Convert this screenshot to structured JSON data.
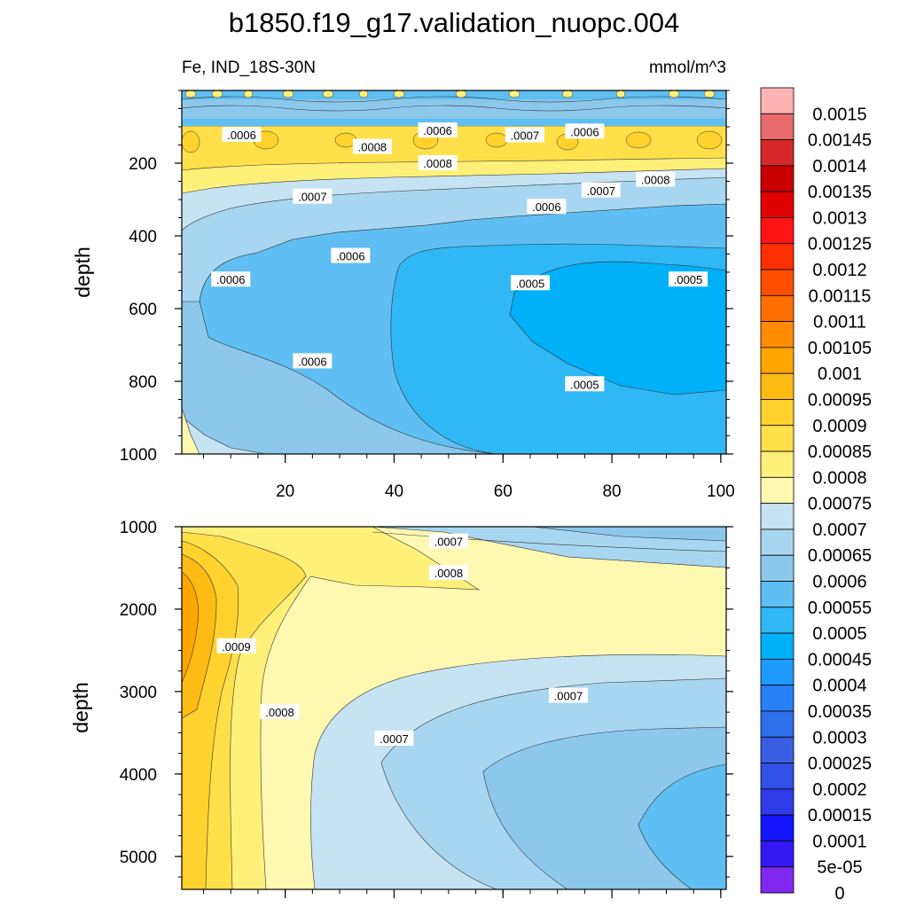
{
  "title": "b1850.f19_g17.validation_nuopc.004",
  "variable_label": "Fe, IND_18S-30N",
  "units_label": "mmol/m^3",
  "chart_data": [
    {
      "type": "contour",
      "panel": "upper",
      "ylabel": "depth",
      "xlabel": "",
      "xlim": [
        1,
        101
      ],
      "ylim": [
        1000,
        0
      ],
      "x_ticks": [
        20,
        40,
        60,
        80,
        100
      ],
      "y_ticks": [
        200,
        400,
        600,
        800,
        1000
      ],
      "contour_labels": [
        {
          "text": ".0006",
          "x": 12,
          "y": 122
        },
        {
          "text": ".0006",
          "x": 48,
          "y": 110
        },
        {
          "text": ".0007",
          "x": 64,
          "y": 123
        },
        {
          "text": ".0006",
          "x": 75,
          "y": 113
        },
        {
          "text": ".0008",
          "x": 36,
          "y": 155
        },
        {
          "text": ".0008",
          "x": 48,
          "y": 200
        },
        {
          "text": ".0007",
          "x": 25,
          "y": 292
        },
        {
          "text": ".0007",
          "x": 78,
          "y": 275
        },
        {
          "text": ".0008",
          "x": 88,
          "y": 245
        },
        {
          "text": ".0006",
          "x": 68,
          "y": 320
        },
        {
          "text": ".0006",
          "x": 32,
          "y": 455
        },
        {
          "text": ".0006",
          "x": 10,
          "y": 520
        },
        {
          "text": ".0005",
          "x": 65,
          "y": 530
        },
        {
          "text": ".0005",
          "x": 94,
          "y": 520
        },
        {
          "text": ".0006",
          "x": 25,
          "y": 745
        },
        {
          "text": ".0005",
          "x": 75,
          "y": 808
        }
      ]
    },
    {
      "type": "contour",
      "panel": "lower",
      "ylabel": "depth",
      "xlabel": "",
      "xlim": [
        1,
        101
      ],
      "ylim": [
        5400,
        1000
      ],
      "x_ticks": [
        20,
        40,
        60,
        80,
        100
      ],
      "y_ticks": [
        1000,
        2000,
        3000,
        4000,
        5000
      ],
      "contour_labels": [
        {
          "text": ".0007",
          "x": 50,
          "y": 1180
        },
        {
          "text": ".0008",
          "x": 50,
          "y": 1560
        },
        {
          "text": ".0009",
          "x": 11,
          "y": 2450
        },
        {
          "text": ".0008",
          "x": 19,
          "y": 3250
        },
        {
          "text": ".0007",
          "x": 40,
          "y": 3570
        },
        {
          "text": ".0007",
          "x": 72,
          "y": 3050
        }
      ]
    }
  ],
  "colorbar": {
    "labels": [
      "0.0015",
      "0.00145",
      "0.0014",
      "0.00135",
      "0.0013",
      "0.00125",
      "0.0012",
      "0.00115",
      "0.0011",
      "0.00105",
      "0.001",
      "0.00095",
      "0.0009",
      "0.00085",
      "0.0008",
      "0.00075",
      "0.0007",
      "0.00065",
      "0.0006",
      "0.00055",
      "0.0005",
      "0.00045",
      "0.0004",
      "0.00035",
      "0.0003",
      "0.00025",
      "0.0002",
      "0.00015",
      "0.0001",
      "5e-05",
      "0"
    ],
    "colors_top_to_bottom": [
      "#ffb3b3",
      "#e86a6a",
      "#d62828",
      "#c80000",
      "#e00000",
      "#ff1414",
      "#ff2f00",
      "#ff5000",
      "#ff6e00",
      "#ff8c00",
      "#ffa500",
      "#ffbb14",
      "#ffd22d",
      "#ffe04a",
      "#fff07a",
      "#fff8b0",
      "#c5e3f3",
      "#a8d6f0",
      "#8bc8ec",
      "#5fbff2",
      "#2fb8f5",
      "#00b0f8",
      "#1f9aff",
      "#2780f5",
      "#2f70ec",
      "#3a5ee2",
      "#3050e6",
      "#2f3be8",
      "#1414ff",
      "#3418f0",
      "#8028f0"
    ]
  }
}
